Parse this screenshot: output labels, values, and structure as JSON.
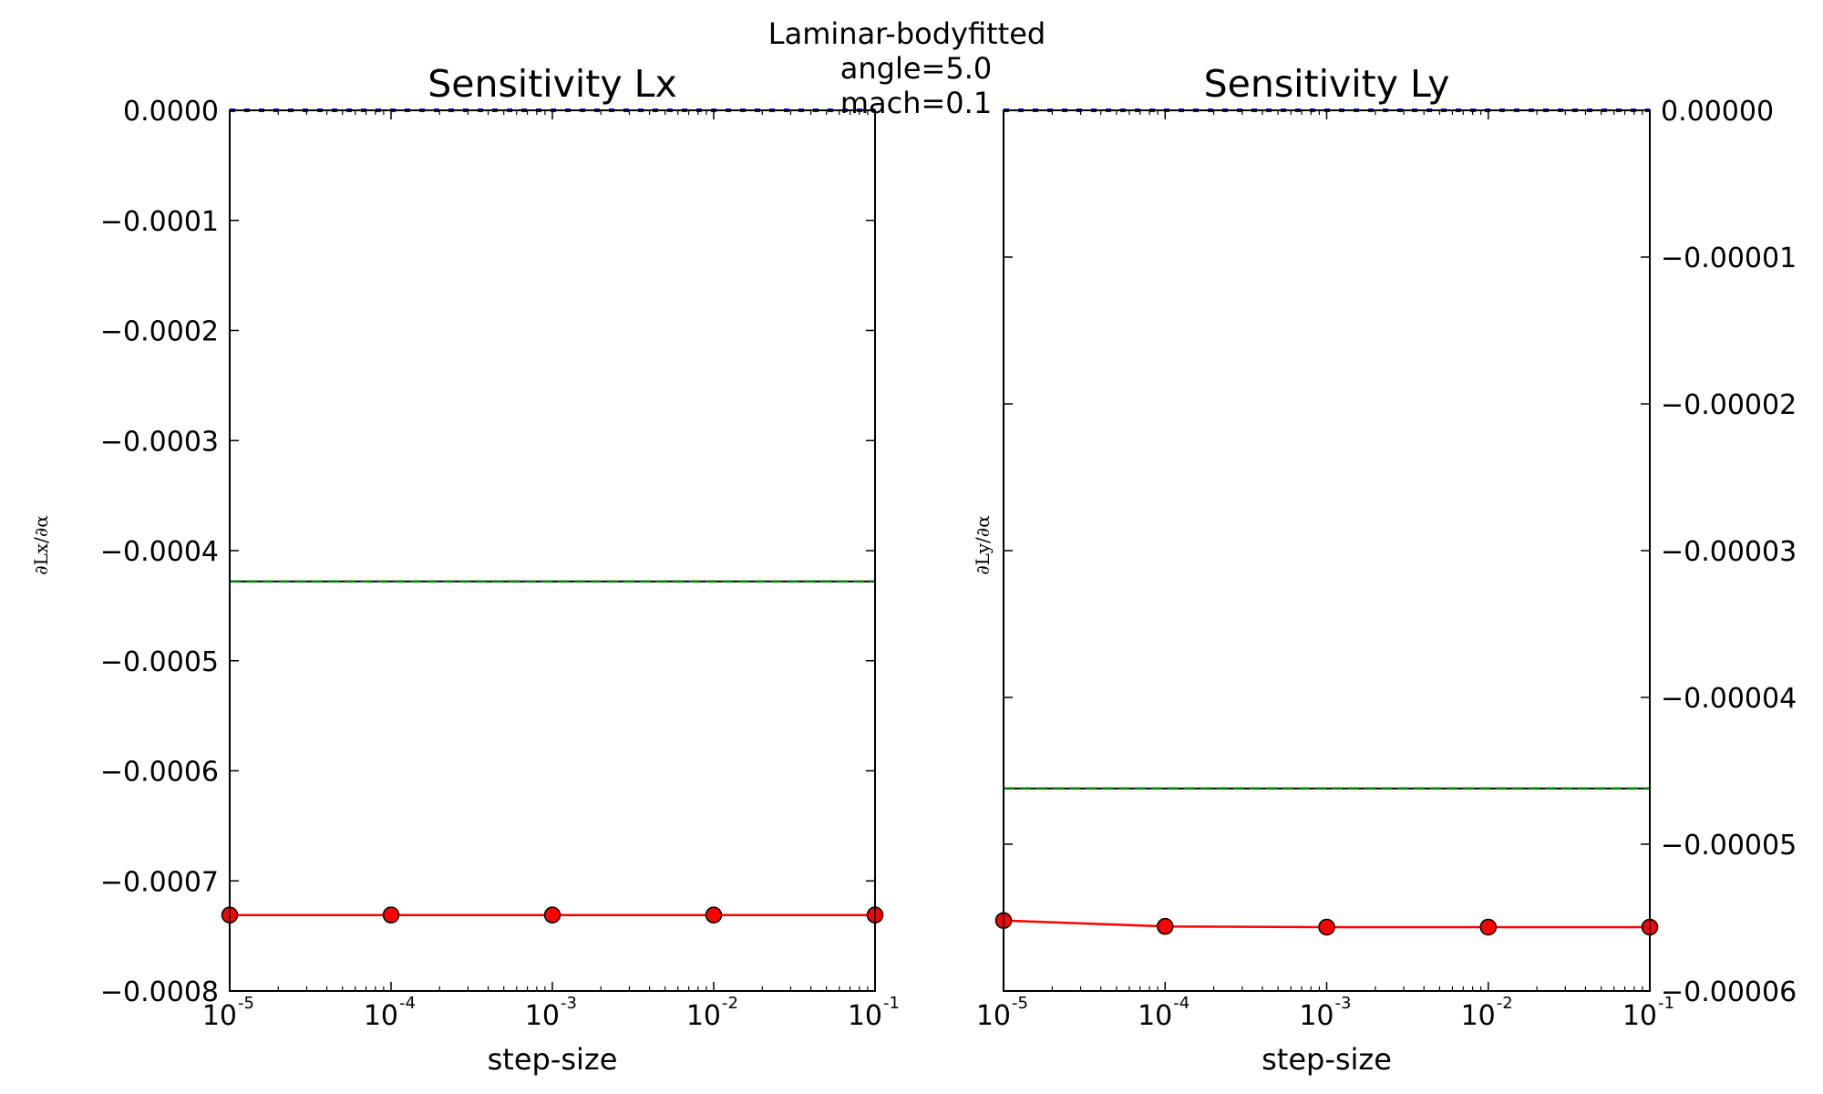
{
  "figure": {
    "suptitle_lines": [
      "Laminar-bodyfitted",
      "angle=5.0",
      "mach=0.1"
    ]
  },
  "chart_data": [
    {
      "type": "line",
      "title": "Sensitivity Lx",
      "xlabel": "step-size",
      "ylabel": "∂Lx/∂α",
      "xscale": "log",
      "xlim": [
        1e-05,
        0.1
      ],
      "ylim": [
        -0.0008,
        0.0
      ],
      "yaxis_side": "left",
      "grid": false,
      "x_ticks": [
        {
          "base": "10",
          "exp": "-5"
        },
        {
          "base": "10",
          "exp": "-4"
        },
        {
          "base": "10",
          "exp": "-3"
        },
        {
          "base": "10",
          "exp": "-2"
        },
        {
          "base": "10",
          "exp": "-1"
        }
      ],
      "y_ticks": [
        {
          "value": 0.0,
          "label": "0.0000"
        },
        {
          "value": -0.0001,
          "label": "−0.0001"
        },
        {
          "value": -0.0002,
          "label": "−0.0002"
        },
        {
          "value": -0.0003,
          "label": "−0.0003"
        },
        {
          "value": -0.0004,
          "label": "−0.0004"
        },
        {
          "value": -0.0005,
          "label": "−0.0005"
        },
        {
          "value": -0.0006,
          "label": "−0.0006"
        },
        {
          "value": -0.0007,
          "label": "−0.0007"
        },
        {
          "value": -0.0008,
          "label": "−0.0008"
        }
      ],
      "series": [
        {
          "style": "red-line-circle-markers",
          "color": "#ff0000",
          "x": [
            1e-05,
            0.0001,
            0.001,
            0.01,
            0.1
          ],
          "y": [
            -0.000731,
            -0.000731,
            -0.000731,
            -0.000731,
            -0.000731
          ]
        },
        {
          "style": "black-horizontal-line",
          "color": "#000000",
          "y": -0.000428
        },
        {
          "style": "green-dashed-horizontal-line",
          "color": "#008000",
          "y": -0.000428
        },
        {
          "style": "blue-dashed-horizontal-line",
          "color": "#0000ff",
          "y": 0.0
        }
      ]
    },
    {
      "type": "line",
      "title": "Sensitivity Ly",
      "xlabel": "step-size",
      "ylabel": "∂Ly/∂α",
      "xscale": "log",
      "xlim": [
        1e-05,
        0.1
      ],
      "ylim": [
        -6e-05,
        0.0
      ],
      "yaxis_side": "right",
      "grid": false,
      "x_ticks": [
        {
          "base": "10",
          "exp": "-5"
        },
        {
          "base": "10",
          "exp": "-4"
        },
        {
          "base": "10",
          "exp": "-3"
        },
        {
          "base": "10",
          "exp": "-2"
        },
        {
          "base": "10",
          "exp": "-1"
        }
      ],
      "y_ticks": [
        {
          "value": 0.0,
          "label": "0.00000"
        },
        {
          "value": -1e-05,
          "label": "−0.00001"
        },
        {
          "value": -2e-05,
          "label": "−0.00002"
        },
        {
          "value": -3e-05,
          "label": "−0.00003"
        },
        {
          "value": -4e-05,
          "label": "−0.00004"
        },
        {
          "value": -5e-05,
          "label": "−0.00005"
        },
        {
          "value": -6e-05,
          "label": "−0.00006"
        }
      ],
      "series": [
        {
          "style": "red-line-circle-markers",
          "color": "#ff0000",
          "x": [
            1e-05,
            0.0001,
            0.001,
            0.01,
            0.1
          ],
          "y": [
            -5.52e-05,
            -5.56e-05,
            -5.565e-05,
            -5.565e-05,
            -5.565e-05
          ]
        },
        {
          "style": "black-horizontal-line",
          "color": "#000000",
          "y": -4.62e-05
        },
        {
          "style": "green-dashed-horizontal-line",
          "color": "#008000",
          "y": -4.62e-05
        },
        {
          "style": "blue-dashed-horizontal-line",
          "color": "#0000ff",
          "y": 0.0
        }
      ]
    }
  ]
}
